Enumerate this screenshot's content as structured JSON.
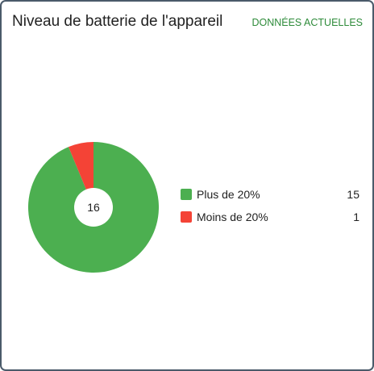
{
  "card": {
    "title": "Niveau de batterie de l'appareil",
    "action_label": "DONNÉES ACTUELLES"
  },
  "colors": {
    "above": "#4caf50",
    "below": "#f44336",
    "accent_text": "#2e8b3a"
  },
  "chart_data": {
    "type": "pie",
    "center_label": "16",
    "total": 16,
    "slices": [
      {
        "label": "Plus de 20%",
        "value": 15,
        "value_label": "15",
        "color": "#4caf50"
      },
      {
        "label": "Moins de 20%",
        "value": 1,
        "value_label": "1",
        "color": "#f44336"
      }
    ]
  }
}
